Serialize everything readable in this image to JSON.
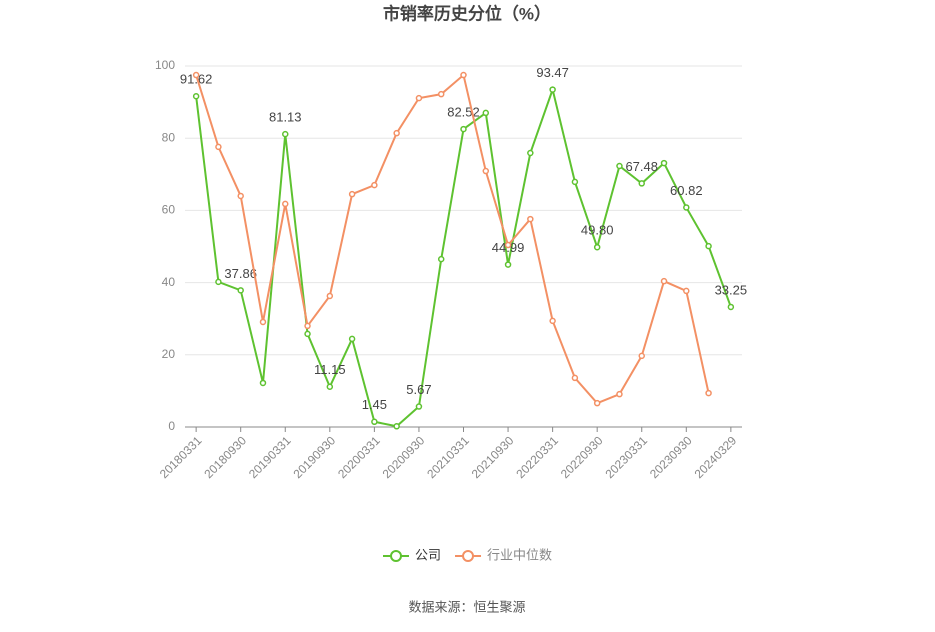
{
  "chart_data": {
    "type": "line",
    "title": "市销率历史分位（%）",
    "source": "数据来源：恒生聚源",
    "categories": [
      "20180331",
      null,
      "20180930",
      null,
      "20190331",
      null,
      "20190930",
      null,
      "20200331",
      null,
      "20200930",
      null,
      "20210331",
      null,
      "20210930",
      null,
      "20220331",
      null,
      "20220930",
      null,
      "20230331",
      null,
      "20230930",
      null,
      "20240329"
    ],
    "series": [
      {
        "name": "公司",
        "color": "#5ec230",
        "values": [
          91.62,
          40.2,
          37.86,
          12.2,
          81.13,
          25.8,
          11.15,
          24.4,
          1.45,
          0.2,
          5.67,
          46.5,
          82.52,
          87,
          44.99,
          75.9,
          93.47,
          67.9,
          49.8,
          72.3,
          67.48,
          73.1,
          60.82,
          50.1,
          33.25
        ],
        "value_labels": [
          "91.62",
          null,
          "37.86",
          null,
          "81.13",
          null,
          "11.15",
          null,
          "1.45",
          null,
          "5.67",
          null,
          "82.52",
          null,
          "44.99",
          null,
          "93.47",
          null,
          "49.80",
          null,
          "67.48",
          null,
          "60.82",
          null,
          "33.25"
        ]
      },
      {
        "name": "行业中位数",
        "color": "#f39064",
        "values": [
          97.5,
          77.6,
          64,
          29.1,
          61.8,
          28,
          36.3,
          64.5,
          67,
          81.4,
          91.1,
          92.2,
          97.5,
          70.9,
          50.4,
          57.6,
          29.4,
          13.6,
          6.6,
          9.1,
          19.7,
          40.4,
          37.7,
          9.4,
          null
        ]
      }
    ],
    "ylim": [
      0,
      100
    ],
    "yticks": [
      0,
      20,
      40,
      60,
      80,
      100
    ],
    "grid": true,
    "legend": "bottom"
  }
}
